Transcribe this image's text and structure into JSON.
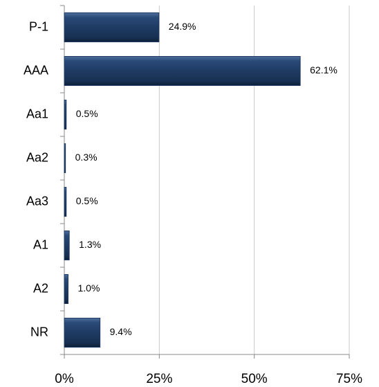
{
  "chart_data": {
    "type": "barh",
    "categories": [
      "P-1",
      "AAA",
      "Aa1",
      "Aa2",
      "Aa3",
      "A1",
      "A2",
      "NR"
    ],
    "values": [
      24.9,
      62.1,
      0.5,
      0.3,
      0.5,
      1.3,
      1.0,
      9.4
    ],
    "value_labels": [
      "24.9%",
      "62.1%",
      "0.5%",
      "0.3%",
      "0.5%",
      "1.3%",
      "1.0%",
      "9.4%"
    ],
    "color": "#1f3b63",
    "xlim": [
      0,
      75
    ],
    "xticks": [
      {
        "value": 0,
        "label": "0%"
      },
      {
        "value": 25,
        "label": "25%"
      },
      {
        "value": 50,
        "label": "50%"
      },
      {
        "value": 75,
        "label": "75%"
      }
    ],
    "grid": true
  }
}
